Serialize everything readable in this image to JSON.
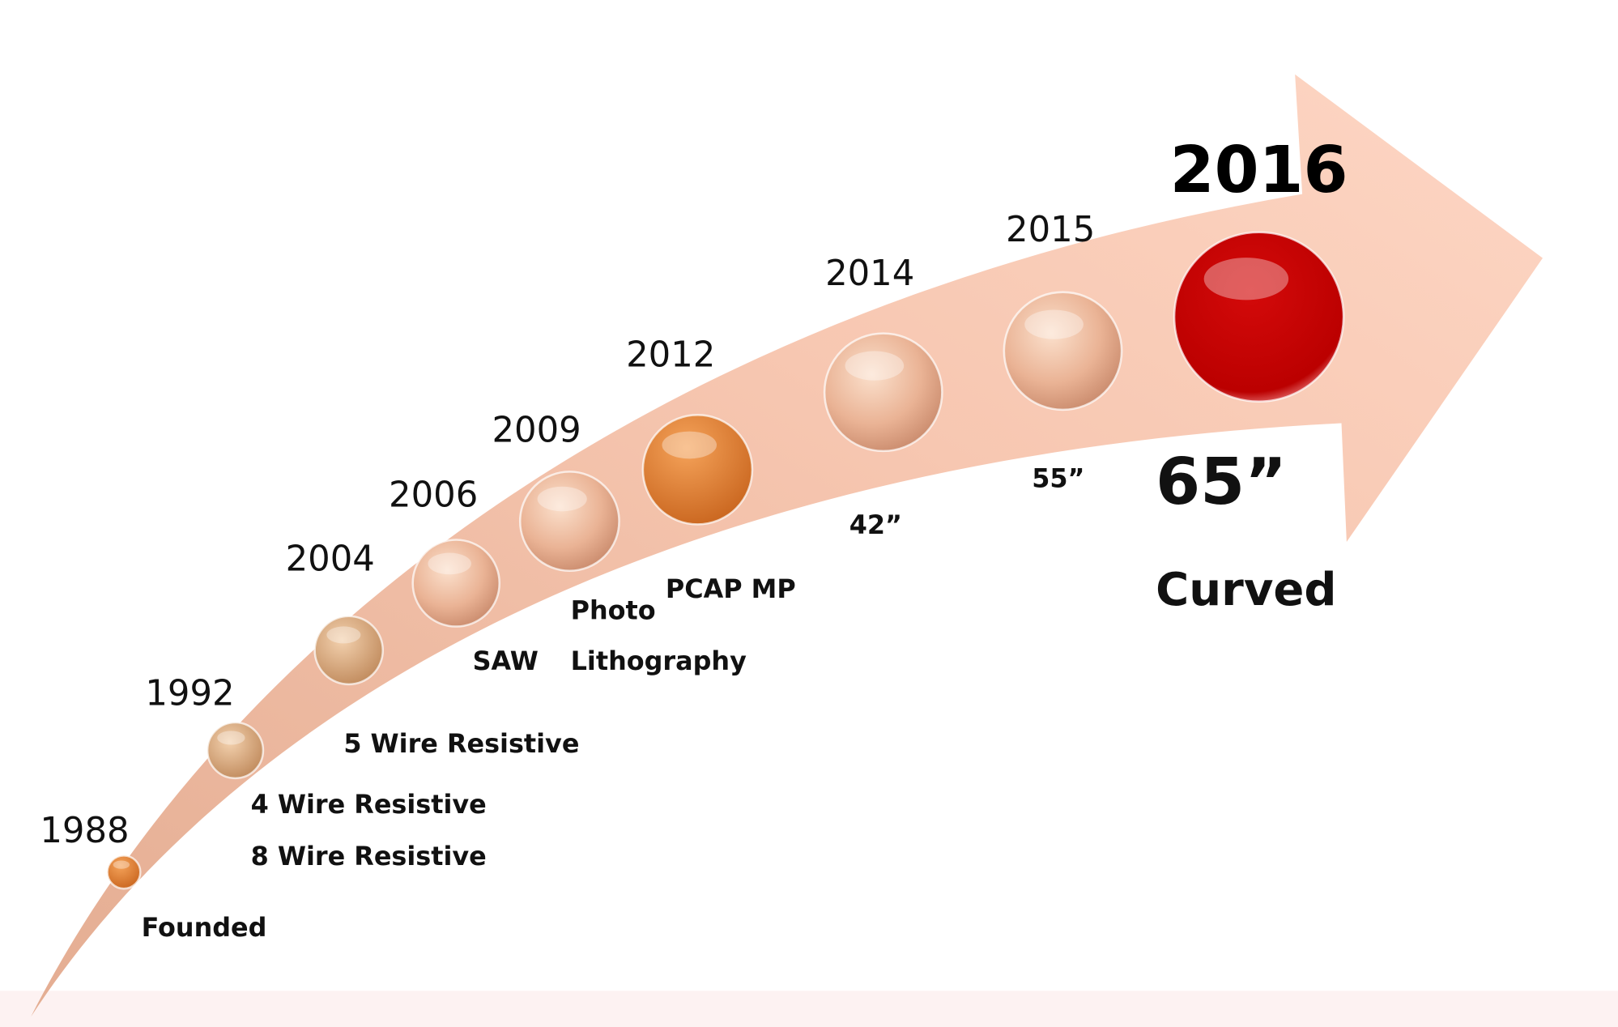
{
  "milestones": [
    {
      "year": "1988",
      "labels": [
        "Founded"
      ]
    },
    {
      "year": "1992",
      "labels": [
        "4 Wire Resistive",
        "8 Wire Resistive"
      ]
    },
    {
      "year": "2004",
      "labels": [
        "5 Wire Resistive"
      ]
    },
    {
      "year": "2006",
      "labels": [
        "SAW"
      ]
    },
    {
      "year": "2009",
      "labels": [
        "Photo",
        "Lithography"
      ]
    },
    {
      "year": "2012",
      "labels": [
        "PCAP MP"
      ]
    },
    {
      "year": "2014",
      "labels": [
        "42”"
      ]
    },
    {
      "year": "2015",
      "labels": [
        "55”"
      ]
    },
    {
      "year": "2016",
      "labels": [
        "65”",
        "Curved"
      ]
    }
  ]
}
